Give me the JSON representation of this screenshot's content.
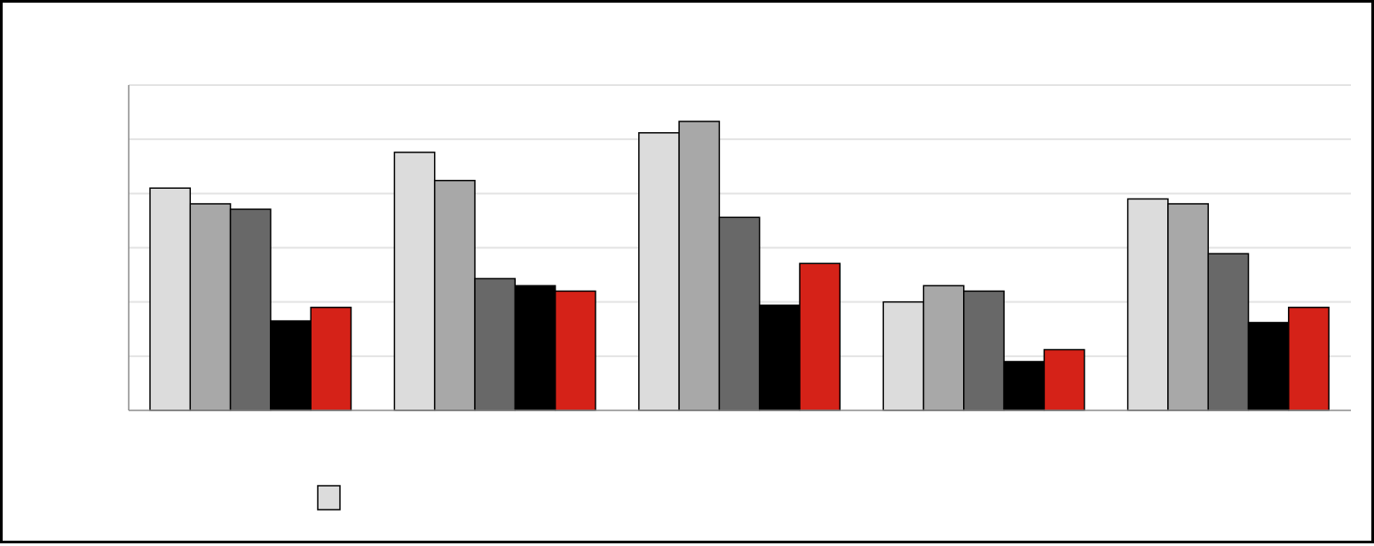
{
  "chart_data": {
    "type": "bar",
    "title": "",
    "xlabel": "",
    "ylabel": "",
    "categories": [
      "",
      "",
      "",
      "",
      ""
    ],
    "ylim": [
      0,
      6
    ],
    "grid": true,
    "legend": "bottom-left",
    "series": [
      {
        "color": "#dcdcdc",
        "values": [
          4.1,
          4.76,
          5.12,
          2.0,
          3.9
        ]
      },
      {
        "color": "#a8a8a8",
        "values": [
          3.81,
          4.24,
          5.33,
          2.3,
          3.81
        ]
      },
      {
        "color": "#686868",
        "values": [
          3.71,
          2.43,
          3.56,
          2.2,
          2.89
        ]
      },
      {
        "color": "#000000",
        "values": [
          1.65,
          2.3,
          1.94,
          0.9,
          1.62
        ]
      },
      {
        "color": "#d52218",
        "values": [
          1.9,
          2.2,
          2.71,
          1.12,
          1.9
        ]
      }
    ]
  }
}
